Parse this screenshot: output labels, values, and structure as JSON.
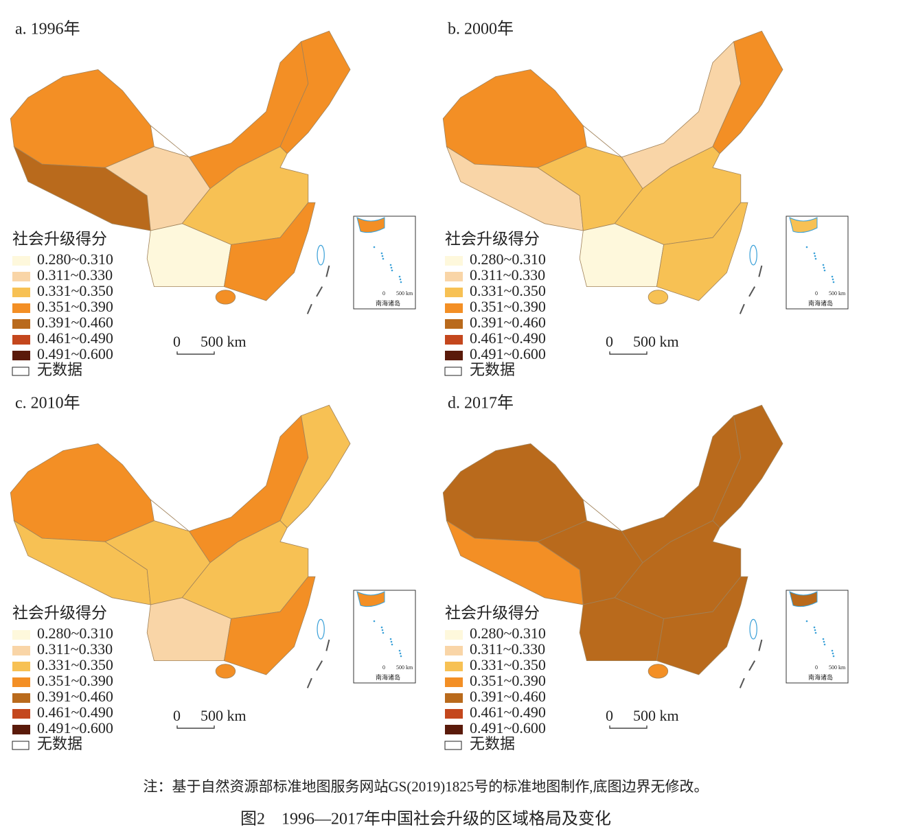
{
  "panels": [
    {
      "title": "a. 1996年",
      "fills": [
        3,
        4,
        1,
        3,
        3,
        2,
        0,
        3,
        3
      ]
    },
    {
      "title": "b. 2000年",
      "fills": [
        3,
        1,
        2,
        1,
        3,
        2,
        0,
        2,
        2
      ]
    },
    {
      "title": "c. 2010年",
      "fills": [
        3,
        2,
        2,
        3,
        2,
        2,
        1,
        3,
        3
      ]
    },
    {
      "title": "d. 2017年",
      "fills": [
        4,
        3,
        4,
        4,
        4,
        4,
        4,
        4,
        3
      ]
    }
  ],
  "legend": {
    "title": "社会升级得分",
    "classes": [
      {
        "label": "0.280~0.310",
        "color": "#fef8dc"
      },
      {
        "label": "0.311~0.330",
        "color": "#f9d5a7"
      },
      {
        "label": "0.331~0.350",
        "color": "#f7c154"
      },
      {
        "label": "0.351~0.390",
        "color": "#f38f25"
      },
      {
        "label": "0.391~0.460",
        "color": "#b96a1c"
      },
      {
        "label": "0.461~0.490",
        "color": "#c4471d"
      },
      {
        "label": "0.491~0.600",
        "color": "#5a1a0a"
      }
    ],
    "no_data": "无数据"
  },
  "scale": {
    "zero": "0",
    "distance": "500 km"
  },
  "inset_label": "南海诸岛",
  "note": "注：基于自然资源部标准地图服务网站GS(2019)1825号的标准地图制作,底图边界无修改。",
  "caption": "图2　1996—2017年中国社会升级的区域格局及变化"
}
